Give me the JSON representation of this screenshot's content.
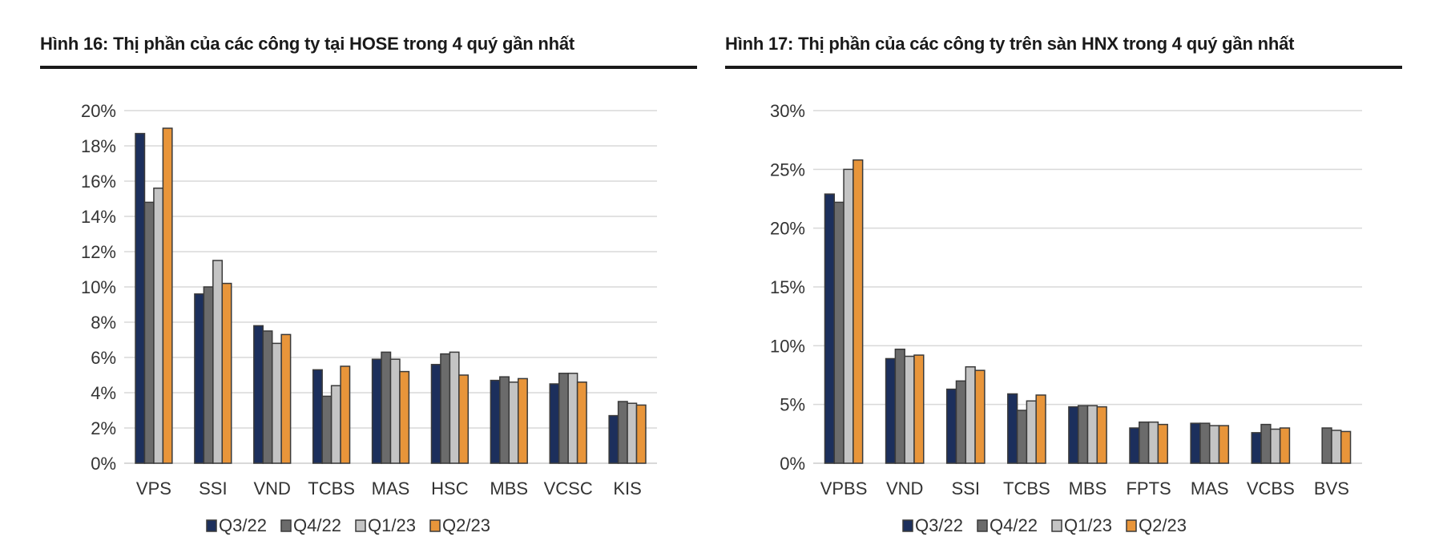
{
  "colors": {
    "Q3/22": "#1c2f5c",
    "Q4/22": "#6b6b6b",
    "Q1/23": "#c4c4c4",
    "Q2/23": "#e8953a",
    "grid": "#d9d9d9",
    "bar_stroke": "#3a3a3a"
  },
  "chart_data": [
    {
      "type": "bar",
      "title": "Hình 16: Thị phần của các công ty tại HOSE trong 4 quý gần nhất",
      "categories": [
        "VPS",
        "SSI",
        "VND",
        "TCBS",
        "MAS",
        "HSC",
        "MBS",
        "VCSC",
        "KIS"
      ],
      "series": [
        {
          "name": "Q3/22",
          "values": [
            18.7,
            9.6,
            7.8,
            5.3,
            5.9,
            5.6,
            4.7,
            4.5,
            2.7
          ]
        },
        {
          "name": "Q4/22",
          "values": [
            14.8,
            10.0,
            7.5,
            3.8,
            6.3,
            6.2,
            4.9,
            5.1,
            3.5
          ]
        },
        {
          "name": "Q1/23",
          "values": [
            15.6,
            11.5,
            6.8,
            4.4,
            5.9,
            6.3,
            4.6,
            5.1,
            3.4
          ]
        },
        {
          "name": "Q2/23",
          "values": [
            19.0,
            10.2,
            7.3,
            5.5,
            5.2,
            5.0,
            4.8,
            4.6,
            3.3
          ]
        }
      ],
      "ylim": [
        0,
        20
      ],
      "yticks": [
        "0%",
        "2%",
        "4%",
        "6%",
        "8%",
        "10%",
        "12%",
        "14%",
        "16%",
        "18%",
        "20%"
      ],
      "grid": true,
      "legend_position": "bottom"
    },
    {
      "type": "bar",
      "title": "Hình 17: Thị phần của các công ty trên sàn HNX trong 4 quý gần nhất",
      "categories": [
        "VPBS",
        "VND",
        "SSI",
        "TCBS",
        "MBS",
        "FPTS",
        "MAS",
        "VCBS",
        "BVS"
      ],
      "series": [
        {
          "name": "Q3/22",
          "values": [
            22.9,
            8.9,
            6.3,
            5.9,
            4.8,
            3.0,
            3.4,
            2.6,
            0
          ]
        },
        {
          "name": "Q4/22",
          "values": [
            22.2,
            9.7,
            7.0,
            4.5,
            4.9,
            3.5,
            3.4,
            3.3,
            3.0
          ]
        },
        {
          "name": "Q1/23",
          "values": [
            25.0,
            9.1,
            8.2,
            5.3,
            4.9,
            3.5,
            3.2,
            2.9,
            2.8
          ]
        },
        {
          "name": "Q2/23",
          "values": [
            25.8,
            9.2,
            7.9,
            5.8,
            4.8,
            3.3,
            3.2,
            3.0,
            2.7
          ]
        }
      ],
      "ylim": [
        0,
        30
      ],
      "yticks": [
        "0%",
        "5%",
        "10%",
        "15%",
        "20%",
        "25%",
        "30%"
      ],
      "grid": true,
      "legend_position": "bottom"
    }
  ]
}
